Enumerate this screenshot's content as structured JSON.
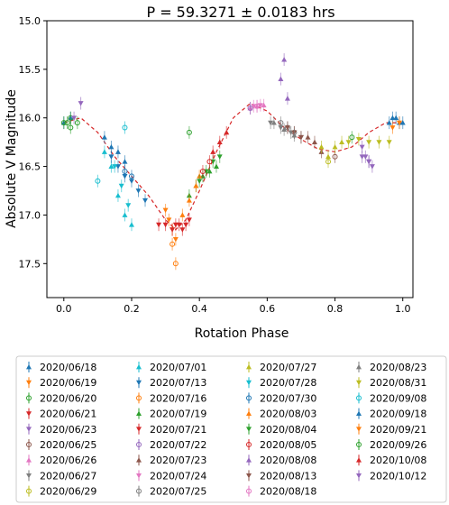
{
  "chart_data": {
    "type": "scatter",
    "title": "P = 59.3271 ± 0.0183 hrs",
    "xlabel": "Rotation Phase",
    "ylabel": "Absolute V Magnitude",
    "xlim": [
      -0.05,
      1.03
    ],
    "ylim": [
      17.85,
      15.0
    ],
    "y_inverted": true,
    "xticks": [
      "0.0",
      "0.2",
      "0.4",
      "0.6",
      "0.8",
      "1.0"
    ],
    "yticks": [
      "15.0",
      "15.5",
      "16.0",
      "16.5",
      "17.0",
      "17.5"
    ],
    "grid": false,
    "legend_position": "below",
    "fit_curve": {
      "style": "dashed",
      "color": "#d62728",
      "points": [
        [
          0.0,
          16.05
        ],
        [
          0.05,
          16.0
        ],
        [
          0.1,
          16.15
        ],
        [
          0.15,
          16.4
        ],
        [
          0.2,
          16.6
        ],
        [
          0.25,
          16.8
        ],
        [
          0.3,
          17.05
        ],
        [
          0.33,
          17.15
        ],
        [
          0.36,
          17.05
        ],
        [
          0.4,
          16.75
        ],
        [
          0.45,
          16.35
        ],
        [
          0.5,
          16.0
        ],
        [
          0.55,
          15.85
        ],
        [
          0.6,
          15.93
        ],
        [
          0.65,
          16.1
        ],
        [
          0.7,
          16.22
        ],
        [
          0.75,
          16.32
        ],
        [
          0.8,
          16.35
        ],
        [
          0.85,
          16.3
        ],
        [
          0.9,
          16.15
        ],
        [
          0.95,
          16.05
        ],
        [
          1.0,
          16.05
        ]
      ]
    },
    "series": [
      {
        "name": "2020/06/18",
        "color": "#1f77b4",
        "marker": "tri_up",
        "x": [
          0.0,
          0.02,
          0.12,
          0.14,
          0.16,
          0.18,
          0.97,
          0.99
        ],
        "y": [
          16.05,
          16.0,
          16.2,
          16.3,
          16.35,
          16.45,
          16.0,
          16.05
        ]
      },
      {
        "name": "2020/06/19",
        "color": "#ff7f0e",
        "marker": "tri_down",
        "x": [
          0.3,
          0.31,
          0.32,
          0.33
        ],
        "y": [
          16.95,
          17.05,
          17.15,
          17.25
        ]
      },
      {
        "name": "2020/06/20",
        "color": "#2ca02c",
        "marker": "circle",
        "x": [
          0.01,
          0.02
        ],
        "y": [
          16.05,
          16.1
        ]
      },
      {
        "name": "2020/06/21",
        "color": "#d62728",
        "marker": "tri_down",
        "x": [
          0.28,
          0.3,
          0.32,
          0.34,
          0.36
        ],
        "y": [
          17.1,
          17.1,
          17.15,
          17.1,
          17.1
        ]
      },
      {
        "name": "2020/06/23",
        "color": "#9467bd",
        "marker": "tri_down",
        "x": [
          0.88,
          0.89,
          0.9,
          0.91
        ],
        "y": [
          16.3,
          16.4,
          16.45,
          16.5
        ]
      },
      {
        "name": "2020/06/25",
        "color": "#8c564b",
        "marker": "circle",
        "x": [
          0.8
        ],
        "y": [
          16.4
        ]
      },
      {
        "name": "2020/06/26",
        "color": "#e377c2",
        "marker": "tri_up",
        "x": [
          0.55,
          0.57,
          0.59
        ],
        "y": [
          15.9,
          15.88,
          15.87
        ]
      },
      {
        "name": "2020/06/27",
        "color": "#7f7f7f",
        "marker": "tri_down",
        "x": [
          0.61,
          0.64,
          0.67,
          0.7
        ],
        "y": [
          16.05,
          16.1,
          16.15,
          16.2
        ]
      },
      {
        "name": "2020/06/29",
        "color": "#bcbd22",
        "marker": "circle",
        "x": [
          0.78
        ],
        "y": [
          16.45
        ]
      },
      {
        "name": "2020/07/01",
        "color": "#17becf",
        "marker": "tri_up",
        "x": [
          0.12,
          0.14,
          0.16,
          0.18,
          0.2
        ],
        "y": [
          16.35,
          16.5,
          16.8,
          17.0,
          17.1
        ]
      },
      {
        "name": "2020/07/13",
        "color": "#1f77b4",
        "marker": "tri_down",
        "x": [
          0.14,
          0.16,
          0.18,
          0.2,
          0.22,
          0.24
        ],
        "y": [
          16.4,
          16.5,
          16.6,
          16.65,
          16.75,
          16.85
        ]
      },
      {
        "name": "2020/07/16",
        "color": "#ff7f0e",
        "marker": "circle",
        "x": [
          0.32,
          0.33
        ],
        "y": [
          17.3,
          17.5
        ]
      },
      {
        "name": "2020/07/19",
        "color": "#2ca02c",
        "marker": "tri_up",
        "x": [
          0.37,
          0.39,
          0.41,
          0.43,
          0.45
        ],
        "y": [
          16.8,
          16.7,
          16.6,
          16.55,
          16.5
        ]
      },
      {
        "name": "2020/07/21",
        "color": "#d62728",
        "marker": "tri_down",
        "x": [
          0.33,
          0.35,
          0.37
        ],
        "y": [
          17.1,
          17.15,
          17.05
        ]
      },
      {
        "name": "2020/07/22",
        "color": "#9467bd",
        "marker": "circle",
        "x": [
          0.55
        ],
        "y": [
          15.9
        ]
      },
      {
        "name": "2020/07/23",
        "color": "#8c564b",
        "marker": "tri_up",
        "x": [
          0.72,
          0.74,
          0.76
        ],
        "y": [
          16.2,
          16.25,
          16.35
        ]
      },
      {
        "name": "2020/07/24",
        "color": "#e377c2",
        "marker": "tri_down",
        "x": [
          0.56,
          0.58
        ],
        "y": [
          15.88,
          15.87
        ]
      },
      {
        "name": "2020/07/25",
        "color": "#7f7f7f",
        "marker": "circle",
        "x": [
          0.64,
          0.66,
          0.68
        ],
        "y": [
          16.05,
          16.1,
          16.15
        ]
      },
      {
        "name": "2020/07/27",
        "color": "#bcbd22",
        "marker": "tri_up",
        "x": [
          0.76,
          0.78,
          0.8,
          0.82
        ],
        "y": [
          16.3,
          16.4,
          16.3,
          16.25
        ]
      },
      {
        "name": "2020/07/28",
        "color": "#17becf",
        "marker": "tri_down",
        "x": [
          0.15,
          0.17,
          0.19
        ],
        "y": [
          16.5,
          16.7,
          16.9
        ]
      },
      {
        "name": "2020/07/30",
        "color": "#1f77b4",
        "marker": "circle",
        "x": [
          0.18,
          0.2
        ],
        "y": [
          16.55,
          16.6
        ]
      },
      {
        "name": "2020/08/03",
        "color": "#ff7f0e",
        "marker": "tri_up",
        "x": [
          0.35,
          0.37,
          0.39,
          0.4
        ],
        "y": [
          17.0,
          16.85,
          16.7,
          16.6
        ]
      },
      {
        "name": "2020/08/04",
        "color": "#2ca02c",
        "marker": "tri_down",
        "x": [
          0.4,
          0.42,
          0.44,
          0.46
        ],
        "y": [
          16.65,
          16.55,
          16.45,
          16.4
        ]
      },
      {
        "name": "2020/08/05",
        "color": "#d62728",
        "marker": "circle",
        "x": [
          0.41,
          0.43
        ],
        "y": [
          16.55,
          16.45
        ]
      },
      {
        "name": "2020/08/08",
        "color": "#9467bd",
        "marker": "tri_up",
        "x": [
          0.64,
          0.65,
          0.66
        ],
        "y": [
          15.6,
          15.4,
          15.8
        ]
      },
      {
        "name": "2020/08/13",
        "color": "#8c564b",
        "marker": "tri_down",
        "x": [
          0.66,
          0.68,
          0.7
        ],
        "y": [
          16.1,
          16.15,
          16.2
        ]
      },
      {
        "name": "2020/08/18",
        "color": "#e377c2",
        "marker": "circle",
        "x": [
          0.57
        ],
        "y": [
          15.88
        ]
      },
      {
        "name": "2020/08/23",
        "color": "#7f7f7f",
        "marker": "tri_up",
        "x": [
          0.62,
          0.65,
          0.68
        ],
        "y": [
          16.05,
          16.12,
          16.18
        ]
      },
      {
        "name": "2020/08/31",
        "color": "#bcbd22",
        "marker": "tri_down",
        "x": [
          0.84,
          0.87,
          0.9,
          0.93,
          0.96
        ],
        "y": [
          16.25,
          16.22,
          16.25,
          16.25,
          16.25
        ]
      },
      {
        "name": "2020/09/08",
        "color": "#17becf",
        "marker": "circle",
        "x": [
          0.1,
          0.18
        ],
        "y": [
          16.65,
          16.1
        ]
      },
      {
        "name": "2020/09/18",
        "color": "#1f77b4",
        "marker": "tri_up",
        "x": [
          0.96,
          0.98,
          1.0
        ],
        "y": [
          16.05,
          16.0,
          16.05
        ]
      },
      {
        "name": "2020/09/21",
        "color": "#ff7f0e",
        "marker": "tri_down",
        "x": [
          0.97,
          0.99
        ],
        "y": [
          16.1,
          16.05
        ]
      },
      {
        "name": "2020/09/26",
        "color": "#2ca02c",
        "marker": "circle",
        "x": [
          0.0,
          0.02,
          0.04,
          0.37,
          0.85
        ],
        "y": [
          16.05,
          16.0,
          16.05,
          16.15,
          16.2
        ]
      },
      {
        "name": "2020/10/08",
        "color": "#d62728",
        "marker": "tri_up",
        "x": [
          0.44,
          0.46,
          0.48
        ],
        "y": [
          16.35,
          16.25,
          16.15
        ]
      },
      {
        "name": "2020/10/12",
        "color": "#9467bd",
        "marker": "tri_down",
        "x": [
          0.03,
          0.05,
          0.88,
          0.9
        ],
        "y": [
          16.0,
          15.85,
          16.4,
          16.45
        ]
      }
    ]
  }
}
